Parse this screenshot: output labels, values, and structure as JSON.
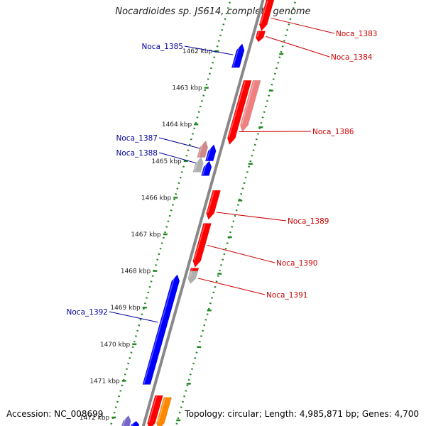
{
  "title": "Nocardioides sp. JS614, complete genome",
  "footer": {
    "accession": "Accession: NC_008699",
    "info": "Topology: circular; Length: 4,985,871 bp; Genes: 4,700"
  },
  "colors": {
    "forward_gene": "#ff0000",
    "forward_gene_light": "#f08080",
    "reverse_gene": "#0000ff",
    "reverse_gene_light": "#d08888",
    "gray_gene": "#b0b0b0",
    "orange_gene": "#ff8800",
    "purple_gene": "#7766cc",
    "ruler_dots": "#228822",
    "backbone": "#888888",
    "forward_label": "#cc0000",
    "reverse_label": "#000099"
  },
  "ruler": {
    "ticks": [
      "1462 kbp",
      "1463 kbp",
      "1464 kbp",
      "1465 kbp",
      "1466 kbp",
      "1467 kbp",
      "1468 kbp",
      "1469 kbp",
      "1470 kbp",
      "1471 kbp",
      "1472 kbp"
    ]
  },
  "genes": [
    {
      "label": "Noca_1383",
      "strand": "forward",
      "style": "forward_gene",
      "start_kbp": 1460.6,
      "end_kbp": 1461.45
    },
    {
      "label": "Noca_1384",
      "strand": "forward",
      "style": "forward_gene",
      "start_kbp": 1461.45,
      "end_kbp": 1461.75
    },
    {
      "label": "Noca_1385",
      "strand": "reverse",
      "style": "reverse_gene",
      "start_kbp": 1461.8,
      "end_kbp": 1462.45
    },
    {
      "label": "Noca_1386",
      "strand": "forward",
      "style": "forward_gene",
      "start_kbp": 1462.8,
      "end_kbp": 1464.55
    },
    {
      "label": "",
      "strand": "forward_outer",
      "style": "forward_gene_light",
      "start_kbp": 1462.8,
      "end_kbp": 1464.2
    },
    {
      "label": "Noca_1387",
      "strand": "reverse",
      "style": "reverse_gene",
      "start_kbp": 1464.55,
      "end_kbp": 1465.0
    },
    {
      "label": "",
      "strand": "reverse_outer",
      "style": "reverse_gene_light",
      "start_kbp": 1464.45,
      "end_kbp": 1464.9
    },
    {
      "label": "Noca_1388",
      "strand": "reverse",
      "style": "reverse_gene",
      "start_kbp": 1465.0,
      "end_kbp": 1465.4
    },
    {
      "label": "",
      "strand": "reverse_outer",
      "style": "gray_gene",
      "start_kbp": 1464.9,
      "end_kbp": 1465.3
    },
    {
      "label": "Noca_1389",
      "strand": "forward",
      "style": "forward_gene",
      "start_kbp": 1465.8,
      "end_kbp": 1466.6
    },
    {
      "label": "Noca_1390",
      "strand": "forward",
      "style": "forward_gene",
      "start_kbp": 1466.7,
      "end_kbp": 1467.9
    },
    {
      "label": "",
      "strand": "forward",
      "style": "forward_gene",
      "start_kbp": 1467.92,
      "end_kbp": 1468.25
    },
    {
      "label": "Noca_1391",
      "strand": "forward",
      "style": "gray_gene",
      "start_kbp": 1468.0,
      "end_kbp": 1468.35
    },
    {
      "label": "Noca_1392",
      "strand": "reverse",
      "style": "reverse_gene",
      "start_kbp": 1468.1,
      "end_kbp": 1471.1
    },
    {
      "label": "",
      "strand": "forward",
      "style": "forward_gene",
      "start_kbp": 1471.4,
      "end_kbp": 1472.5
    },
    {
      "label": "",
      "strand": "forward_outer",
      "style": "orange_gene",
      "start_kbp": 1471.45,
      "end_kbp": 1472.5
    },
    {
      "label": "",
      "strand": "reverse_outer",
      "style": "purple_gene",
      "start_kbp": 1471.95,
      "end_kbp": 1472.5
    },
    {
      "label": "",
      "strand": "reverse",
      "style": "reverse_gene",
      "start_kbp": 1472.1,
      "end_kbp": 1472.5
    }
  ]
}
